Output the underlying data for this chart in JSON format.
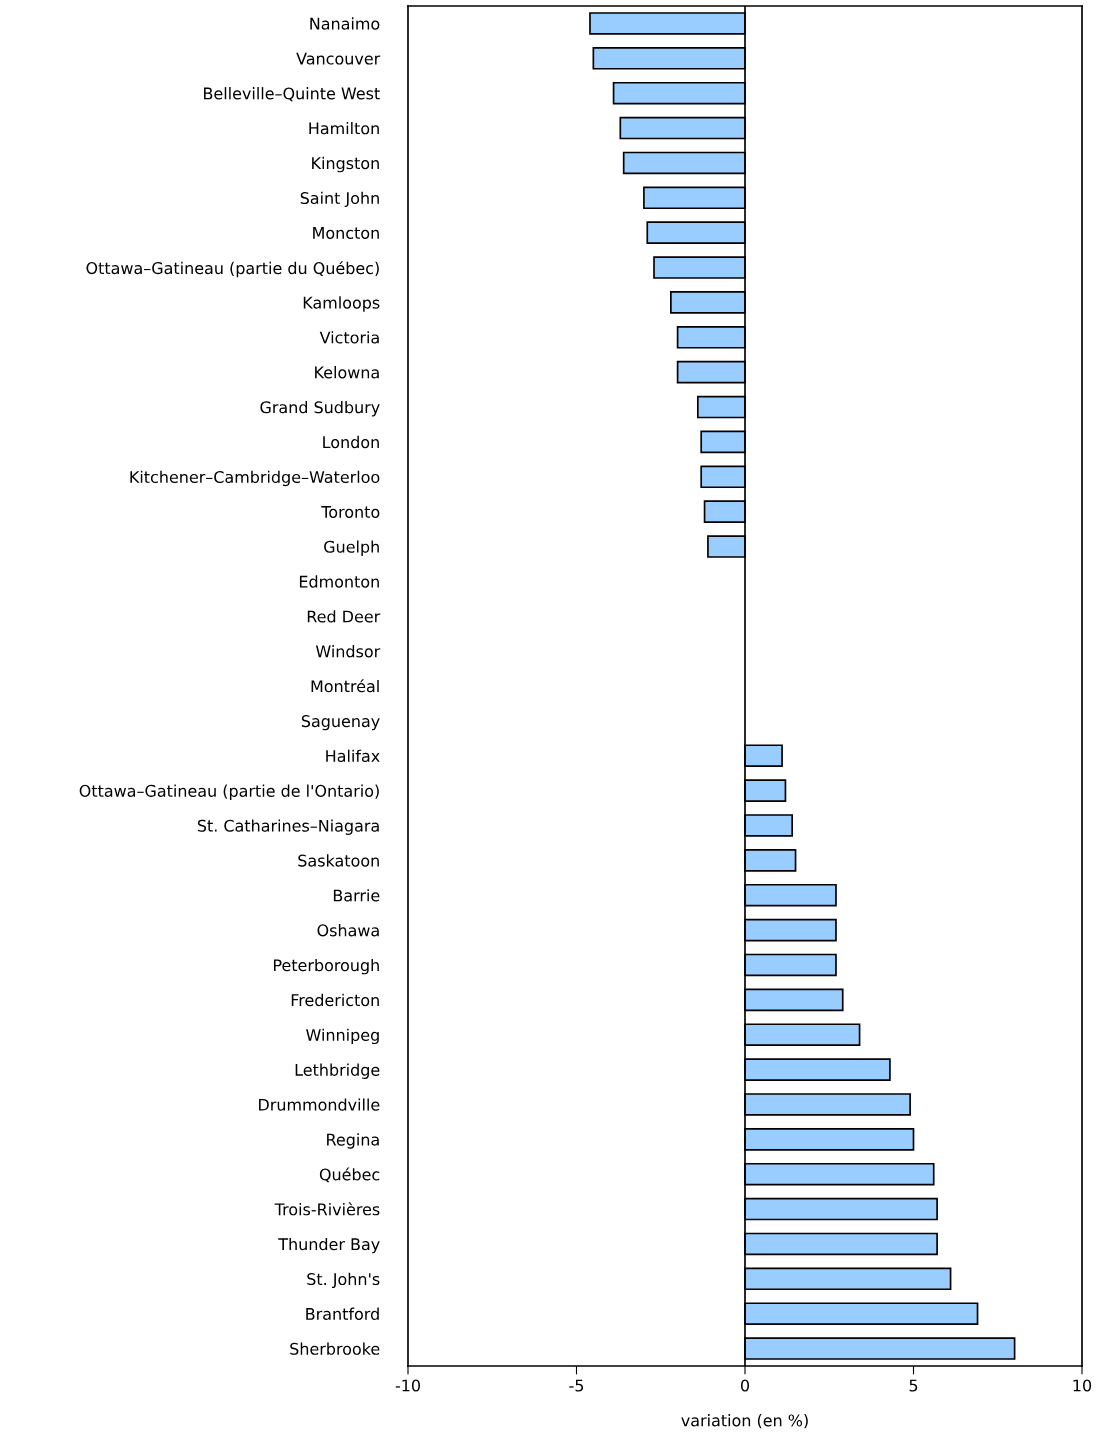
{
  "chart_data": {
    "type": "bar",
    "orientation": "horizontal",
    "xlabel": "variation (en %)",
    "categories": [
      "Nanaimo",
      "Vancouver",
      "Belleville–Quinte West",
      "Hamilton",
      "Kingston",
      "Saint John",
      "Moncton",
      "Ottawa–Gatineau (partie du Québec)",
      "Kamloops",
      "Victoria",
      "Kelowna",
      "Grand Sudbury",
      "London",
      "Kitchener–Cambridge–Waterloo",
      "Toronto",
      "Guelph",
      "Edmonton",
      "Red Deer",
      "Windsor",
      "Montréal",
      "Saguenay",
      "Halifax",
      "Ottawa–Gatineau (partie de l'Ontario)",
      "St. Catharines–Niagara",
      "Saskatoon",
      "Barrie",
      "Oshawa",
      "Peterborough",
      "Fredericton",
      "Winnipeg",
      "Lethbridge",
      "Drummondville",
      "Regina",
      "Québec",
      "Trois-Rivières",
      "Thunder Bay",
      "St. John's",
      "Brantford",
      "Sherbrooke"
    ],
    "values": [
      -4.6,
      -4.5,
      -3.9,
      -3.7,
      -3.6,
      -3.0,
      -2.9,
      -2.7,
      -2.2,
      -2.0,
      -2.0,
      -1.4,
      -1.3,
      -1.3,
      -1.2,
      -1.1,
      0,
      0,
      0,
      0,
      0,
      1.1,
      1.2,
      1.4,
      1.5,
      2.7,
      2.7,
      2.7,
      2.9,
      3.4,
      4.3,
      4.9,
      5.0,
      5.6,
      5.7,
      5.7,
      6.1,
      6.9,
      8.0
    ],
    "color": "#99ccff",
    "xlim": [
      -10,
      10
    ],
    "xticks": [
      {
        "value": -10,
        "label": "-10"
      },
      {
        "value": -5,
        "label": "-5"
      },
      0,
      5,
      10
    ],
    "ref_lines": [
      {
        "axis": "x",
        "value": 0,
        "color": "#000000"
      }
    ],
    "grid": false,
    "legend": false
  }
}
